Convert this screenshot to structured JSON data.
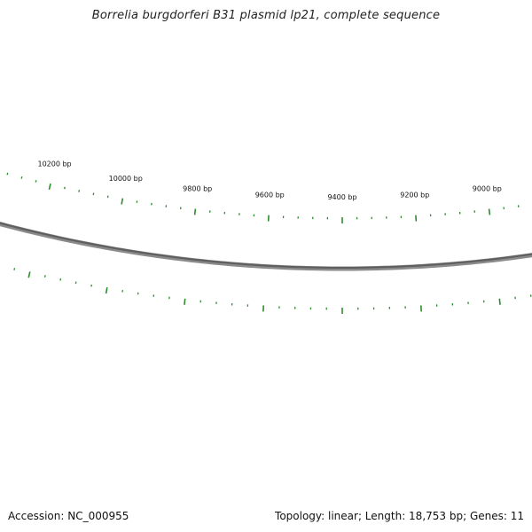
{
  "title": "Borrelia burgdorferi B31 plasmid lp21, complete sequence",
  "footer": {
    "accession": "Accession: NC_000955",
    "summary": "Topology: linear; Length: 18,753 bp; Genes: 11"
  },
  "colors": {
    "background": "#ffffff",
    "backbone": "#7a7a7a",
    "tick": "#2e8b2e",
    "text": "#111111"
  },
  "map": {
    "topology": "linear",
    "length_bp": 18753,
    "tick_labels": [
      "10200 bp",
      "10000 bp",
      "9800 bp",
      "9600 bp",
      "9400 bp",
      "9200 bp",
      "9000 bp"
    ]
  }
}
